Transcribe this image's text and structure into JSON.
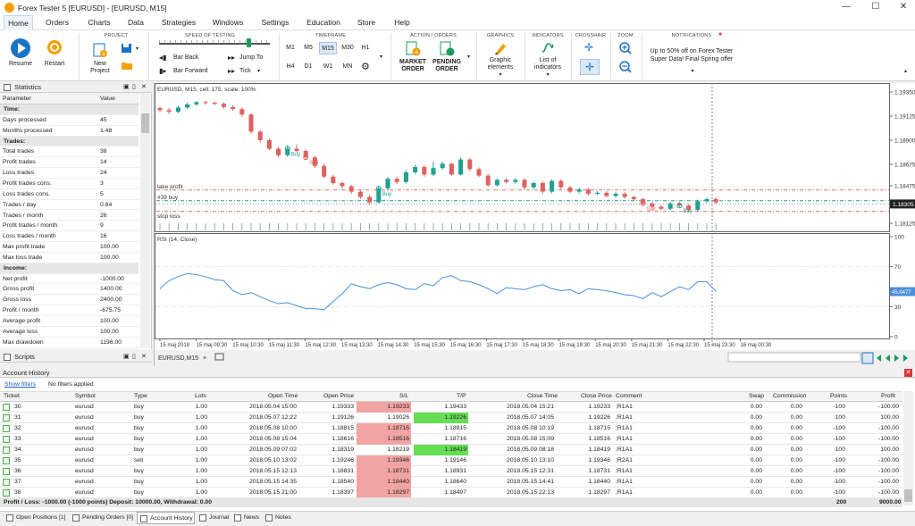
{
  "window": {
    "title": "Forex Tester 5  [EURUSD] - [EURUSD, M15]"
  },
  "menu": {
    "items": [
      "Home",
      "Orders",
      "Charts",
      "Data",
      "Strategies",
      "Windows",
      "Settings",
      "Education",
      "Store",
      "Help"
    ]
  },
  "ribbon": {
    "groups": {
      "project": "PROJECT",
      "speed": "SPEED OF TESTING",
      "timeframe": "TIMEFRAME",
      "action": "ACTION / ORDERS",
      "graphics": "GRAPHICS",
      "indicators": "INDICATORS",
      "crosshair": "CROSSHAIR",
      "zoom": "ZOOM",
      "notifications": "NOTIFICATIONS"
    },
    "resume": "Resume",
    "restart": "Restart",
    "new_project_1": "New",
    "new_project_2": "Project",
    "bar_back": "Bar Back",
    "bar_forward": "Bar Forward",
    "jump_to": "Jump To",
    "tick": "Tick",
    "timeframes": [
      "M1",
      "M5",
      "M15",
      "M30",
      "H1",
      "H4",
      "D1",
      "W1",
      "MN"
    ],
    "market_order_1": "MARKET",
    "market_order_2": "ORDER",
    "pending_order_1": "PENDING",
    "pending_order_2": "ORDER",
    "graphic_elements_1": "Graphic",
    "graphic_elements_2": "elements",
    "list_indicators_1": "List of",
    "list_indicators_2": "indicators",
    "notification_1": "Up to 50% off on Forex Tester",
    "notification_2": "Super Data! Final Spring offer"
  },
  "statistics": {
    "title": "Statistics",
    "col_param": "Parameter",
    "col_value": "Value",
    "rows": [
      {
        "k": "Time:",
        "v": "",
        "sec": true
      },
      {
        "k": "Days processed",
        "v": "45"
      },
      {
        "k": "Months processed",
        "v": "1.48"
      },
      {
        "k": "Trades:",
        "v": "",
        "sec": true
      },
      {
        "k": "Total trades",
        "v": "38"
      },
      {
        "k": "Profit trades",
        "v": "14"
      },
      {
        "k": "Loss trades",
        "v": "24"
      },
      {
        "k": "Profit trades cons.",
        "v": "3"
      },
      {
        "k": "Loss trades cons.",
        "v": "5"
      },
      {
        "k": "Trades / day",
        "v": "0.84"
      },
      {
        "k": "Trades / month",
        "v": "26"
      },
      {
        "k": "Profit trades / month",
        "v": "9"
      },
      {
        "k": "Loss trades / month",
        "v": "16"
      },
      {
        "k": "Max profit trade",
        "v": "100.00"
      },
      {
        "k": "Max loss trade",
        "v": "100.00"
      },
      {
        "k": "Income:",
        "v": "",
        "sec": true
      },
      {
        "k": "Net profit",
        "v": "-1000.00"
      },
      {
        "k": "Gross profit",
        "v": "1400.00"
      },
      {
        "k": "Gross loss",
        "v": "2400.00"
      },
      {
        "k": "Profit / month",
        "v": "-675.75"
      },
      {
        "k": "Average profit",
        "v": "100.00"
      },
      {
        "k": "Average loss",
        "v": "100.00"
      },
      {
        "k": "Max drawdown",
        "v": "1196.00"
      }
    ]
  },
  "scripts": {
    "title": "Scripts"
  },
  "chart": {
    "header": "EURUSD, M15, cell: 175, scale: 100%",
    "price_ticks": [
      "1.19350",
      "1.19125",
      "1.18900",
      "1.18675",
      "1.18475",
      "1.18125"
    ],
    "current_price": "1.18305",
    "labels": {
      "take_profit": "take profit",
      "buy_line": "#39 buy",
      "stop_loss": "stop loss",
      "buy1": "Buy",
      "sell1": "Sell",
      "buy2": "Buy",
      "sell2": "Sell",
      "buy3": "Buy"
    },
    "rsi_header": "RSI (14, Close)",
    "rsi_ticks": [
      "100",
      "70",
      "30",
      "0"
    ],
    "rsi_current": "45.0477",
    "time_ticks": [
      "15 maj 2018",
      "15 maj 09:30",
      "15 maj 10:30",
      "15 maj 11:30",
      "15 maj 12:30",
      "15 maj 13:30",
      "15 maj 14:30",
      "15 maj 15:30",
      "15 maj 16:30",
      "15 maj 17:30",
      "15 maj 18:30",
      "15 maj 19:30",
      "15 maj 20:30",
      "15 maj 21:30",
      "15 maj 22:30",
      "15 maj 23:30",
      "16 maj 00:30"
    ],
    "tab": "EURUSD,M15"
  },
  "chart_data": {
    "type": "candlestick",
    "symbol": "EURUSD",
    "timeframe": "M15",
    "candles": [
      [
        1.192,
        1.1918,
        1.19215,
        1.1916
      ],
      [
        1.1918,
        1.19165,
        1.192,
        1.19145
      ],
      [
        1.19165,
        1.19205,
        1.19225,
        1.1915
      ],
      [
        1.19205,
        1.19235,
        1.1925,
        1.1919
      ],
      [
        1.19235,
        1.19255,
        1.19265,
        1.1922
      ],
      [
        1.19255,
        1.1925,
        1.1927,
        1.1923
      ],
      [
        1.1925,
        1.1924,
        1.1926,
        1.19225
      ],
      [
        1.1924,
        1.1921,
        1.19255,
        1.19195
      ],
      [
        1.1921,
        1.1919,
        1.19225,
        1.19175
      ],
      [
        1.1919,
        1.1914,
        1.19205,
        1.1912
      ],
      [
        1.1914,
        1.1898,
        1.1915,
        1.1896
      ],
      [
        1.1898,
        1.189,
        1.18995,
        1.1888
      ],
      [
        1.189,
        1.1882,
        1.18915,
        1.18805
      ],
      [
        1.1882,
        1.1876,
        1.1884,
        1.1874
      ],
      [
        1.1876,
        1.1882,
        1.18855,
        1.18745
      ],
      [
        1.1882,
        1.188,
        1.1886,
        1.18785
      ],
      [
        1.188,
        1.1874,
        1.18815,
        1.1872
      ],
      [
        1.1874,
        1.1866,
        1.18755,
        1.1864
      ],
      [
        1.1866,
        1.1856,
        1.1868,
        1.18545
      ],
      [
        1.1856,
        1.185,
        1.18575,
        1.18485
      ],
      [
        1.185,
        1.1847,
        1.18515,
        1.1845
      ],
      [
        1.1847,
        1.1842,
        1.18485,
        1.184
      ],
      [
        1.1842,
        1.1837,
        1.1844,
        1.1835
      ],
      [
        1.1837,
        1.1832,
        1.1839,
        1.183
      ],
      [
        1.1832,
        1.1845,
        1.1847,
        1.1831
      ],
      [
        1.1845,
        1.1854,
        1.1856,
        1.1843
      ],
      [
        1.1854,
        1.1851,
        1.1856,
        1.1849
      ],
      [
        1.1851,
        1.186,
        1.1862,
        1.18495
      ],
      [
        1.186,
        1.1865,
        1.1867,
        1.18585
      ],
      [
        1.1865,
        1.1858,
        1.18665,
        1.1856
      ],
      [
        1.1858,
        1.1864,
        1.187,
        1.18565
      ],
      [
        1.1864,
        1.1868,
        1.187,
        1.18625
      ],
      [
        1.1868,
        1.1858,
        1.1869,
        1.18565
      ],
      [
        1.1858,
        1.1872,
        1.1874,
        1.1857
      ],
      [
        1.1872,
        1.1863,
        1.18735,
        1.1861
      ],
      [
        1.1863,
        1.1857,
        1.18645,
        1.18555
      ],
      [
        1.1857,
        1.1848,
        1.18585,
        1.18465
      ],
      [
        1.1848,
        1.1853,
        1.18545,
        1.18465
      ],
      [
        1.1853,
        1.1851,
        1.18545,
        1.18495
      ],
      [
        1.1851,
        1.1853,
        1.18545,
        1.18495
      ],
      [
        1.1853,
        1.1846,
        1.18545,
        1.1844
      ],
      [
        1.1846,
        1.185,
        1.18515,
        1.18445
      ],
      [
        1.185,
        1.1842,
        1.18515,
        1.184
      ],
      [
        1.1842,
        1.1852,
        1.18535,
        1.18405
      ],
      [
        1.1852,
        1.1846,
        1.18535,
        1.18445
      ],
      [
        1.1846,
        1.1842,
        1.18475,
        1.18405
      ],
      [
        1.1842,
        1.1844,
        1.18455,
        1.18405
      ],
      [
        1.1844,
        1.184,
        1.18455,
        1.18385
      ],
      [
        1.184,
        1.1841,
        1.18425,
        1.18385
      ],
      [
        1.1841,
        1.1838,
        1.18425,
        1.18365
      ],
      [
        1.1838,
        1.184,
        1.18415,
        1.18365
      ],
      [
        1.184,
        1.1837,
        1.18415,
        1.18355
      ],
      [
        1.1837,
        1.1835,
        1.18385,
        1.18335
      ],
      [
        1.1835,
        1.1831,
        1.18365,
        1.18295
      ],
      [
        1.1831,
        1.1828,
        1.18325,
        1.18265
      ],
      [
        1.1828,
        1.1826,
        1.18295,
        1.18245
      ],
      [
        1.1826,
        1.1831,
        1.18325,
        1.18245
      ],
      [
        1.1831,
        1.1829,
        1.18325,
        1.18275
      ],
      [
        1.1829,
        1.1825,
        1.18305,
        1.18235
      ],
      [
        1.1825,
        1.1833,
        1.18345,
        1.18235
      ],
      [
        1.1833,
        1.1835,
        1.18365,
        1.18315
      ],
      [
        1.1835,
        1.1832,
        1.18365,
        1.18305
      ]
    ],
    "rsi": [
      48,
      56,
      60,
      63,
      62,
      60,
      57,
      56,
      46,
      42,
      44,
      40,
      36,
      33,
      34,
      31,
      28,
      28,
      27,
      35,
      43,
      53,
      50,
      48,
      52,
      54,
      52,
      48,
      47,
      53,
      51,
      59,
      61,
      56,
      55,
      52,
      48,
      43,
      49,
      48,
      47,
      50,
      52,
      48,
      46,
      47,
      43,
      48,
      47,
      46,
      44,
      42,
      41,
      38,
      44,
      40,
      45,
      50,
      47,
      55,
      55,
      45
    ],
    "ylim": [
      1.18,
      1.194
    ],
    "take_profit": 1.18435,
    "buy_entry": 1.18335,
    "stop_loss": 1.18235,
    "current_price": 1.18305,
    "rsi_levels": [
      70,
      30
    ]
  },
  "account": {
    "title": "Account History",
    "show_filters": "Show filters",
    "no_filters": "No filters applied",
    "cols": {
      "ticket": "Ticket",
      "symbol": "Symbol",
      "type": "Type",
      "lots": "Lots",
      "open_time": "Open Time",
      "open_price": "Open Price",
      "sl": "S/L",
      "tp": "T/P",
      "close_time": "Close Time",
      "close_price": "Close Price",
      "comment": "Comment",
      "swap": "Swap",
      "commission": "Commission",
      "points": "Points",
      "profit": "Profit"
    },
    "rows": [
      {
        "ticket": "30",
        "symbol": "eurusd",
        "type": "buy",
        "lots": "1.00",
        "open_time": "2018.05.04 15:00",
        "open_price": "1.19333",
        "sl": "1.19233",
        "tp": "1.19433",
        "close_time": "2018.05.04 15:21",
        "close_price": "1.19233",
        "comment": ";R1A1",
        "swap": "0.00",
        "commission": "0.00",
        "points": "-100",
        "profit": "-100.00",
        "hl": "sl"
      },
      {
        "ticket": "31",
        "symbol": "eurusd",
        "type": "buy",
        "lots": "1.00",
        "open_time": "2018.05.07 12:22",
        "open_price": "1.19126",
        "sl": "1.19026",
        "tp": "1.19226",
        "close_time": "2018.05.07 14:05",
        "close_price": "1.19226",
        "comment": ";R1A1",
        "swap": "0.00",
        "commission": "0.00",
        "points": "100",
        "profit": "100.00",
        "hl": "tp"
      },
      {
        "ticket": "32",
        "symbol": "eurusd",
        "type": "buy",
        "lots": "1.00",
        "open_time": "2018.05.08 10:00",
        "open_price": "1.18815",
        "sl": "1.18715",
        "tp": "1.18915",
        "close_time": "2018.05.08 10:19",
        "close_price": "1.18715",
        "comment": ";R1A1",
        "swap": "0.00",
        "commission": "0.00",
        "points": "-100",
        "profit": "-100.00",
        "hl": "sl"
      },
      {
        "ticket": "33",
        "symbol": "eurusd",
        "type": "buy",
        "lots": "1.00",
        "open_time": "2018.05.08 15:04",
        "open_price": "1.18616",
        "sl": "1.18516",
        "tp": "1.18716",
        "close_time": "2018.05.08 15:09",
        "close_price": "1.18516",
        "comment": ";R1A1",
        "swap": "0.00",
        "commission": "0.00",
        "points": "-100",
        "profit": "-100.00",
        "hl": "sl"
      },
      {
        "ticket": "34",
        "symbol": "eurusd",
        "type": "buy",
        "lots": "1.00",
        "open_time": "2018.05.09 07:02",
        "open_price": "1.18319",
        "sl": "1.18219",
        "tp": "1.18419",
        "close_time": "2018.05.09 08:18",
        "close_price": "1.18419",
        "comment": ";R1A1",
        "swap": "0.00",
        "commission": "0.00",
        "points": "100",
        "profit": "100.00",
        "hl": "tp"
      },
      {
        "ticket": "35",
        "symbol": "eurusd",
        "type": "sell",
        "lots": "1.00",
        "open_time": "2018.05.10 13:02",
        "open_price": "1.19246",
        "sl": "1.19346",
        "tp": "1.19146",
        "close_time": "2018.05.10 13:10",
        "close_price": "1.19346",
        "comment": ";R2A1",
        "swap": "0.00",
        "commission": "0.00",
        "points": "-100",
        "profit": "-100.00",
        "hl": "sl"
      },
      {
        "ticket": "36",
        "symbol": "eurusd",
        "type": "buy",
        "lots": "1.00",
        "open_time": "2018.05.15 12:13",
        "open_price": "1.18831",
        "sl": "1.18731",
        "tp": "1.18931",
        "close_time": "2018.05.15 12:31",
        "close_price": "1.18731",
        "comment": ";R1A1",
        "swap": "0.00",
        "commission": "0.00",
        "points": "-100",
        "profit": "-100.00",
        "hl": "sl"
      },
      {
        "ticket": "37",
        "symbol": "eurusd",
        "type": "buy",
        "lots": "1.00",
        "open_time": "2018.05.15 14:35",
        "open_price": "1.18540",
        "sl": "1.18440",
        "tp": "1.18640",
        "close_time": "2018.05.15 14:41",
        "close_price": "1.18440",
        "comment": ";R1A1",
        "swap": "0.00",
        "commission": "0.00",
        "points": "-100",
        "profit": "-100.00",
        "hl": "sl"
      },
      {
        "ticket": "38",
        "symbol": "eurusd",
        "type": "buy",
        "lots": "1.00",
        "open_time": "2018.05.15 21:00",
        "open_price": "1.18397",
        "sl": "1.18297",
        "tp": "1.18497",
        "close_time": "2018.05.15 22:13",
        "close_price": "1.18297",
        "comment": ";R1A1",
        "swap": "0.00",
        "commission": "0.00",
        "points": "-100",
        "profit": "-100.00",
        "hl": "sl"
      }
    ],
    "summary": "Profit / Loss: -1000.00 (-1000 points) Deposit: 10000.00, Withdrawal: 0.00",
    "summary_points": "200",
    "summary_profit": "9000.00"
  },
  "bottom_tabs": [
    "Open Positions [1]",
    "Pending Orders [0]",
    "Account History",
    "Journal",
    "News",
    "Notes"
  ],
  "colors": {
    "bull": "#20a090",
    "bear": "#e06060",
    "accent": "#1a73c8",
    "rsi": "#4a8fd8",
    "sl_cell": "#f2a3a3",
    "tp_cell": "#66dd55"
  }
}
